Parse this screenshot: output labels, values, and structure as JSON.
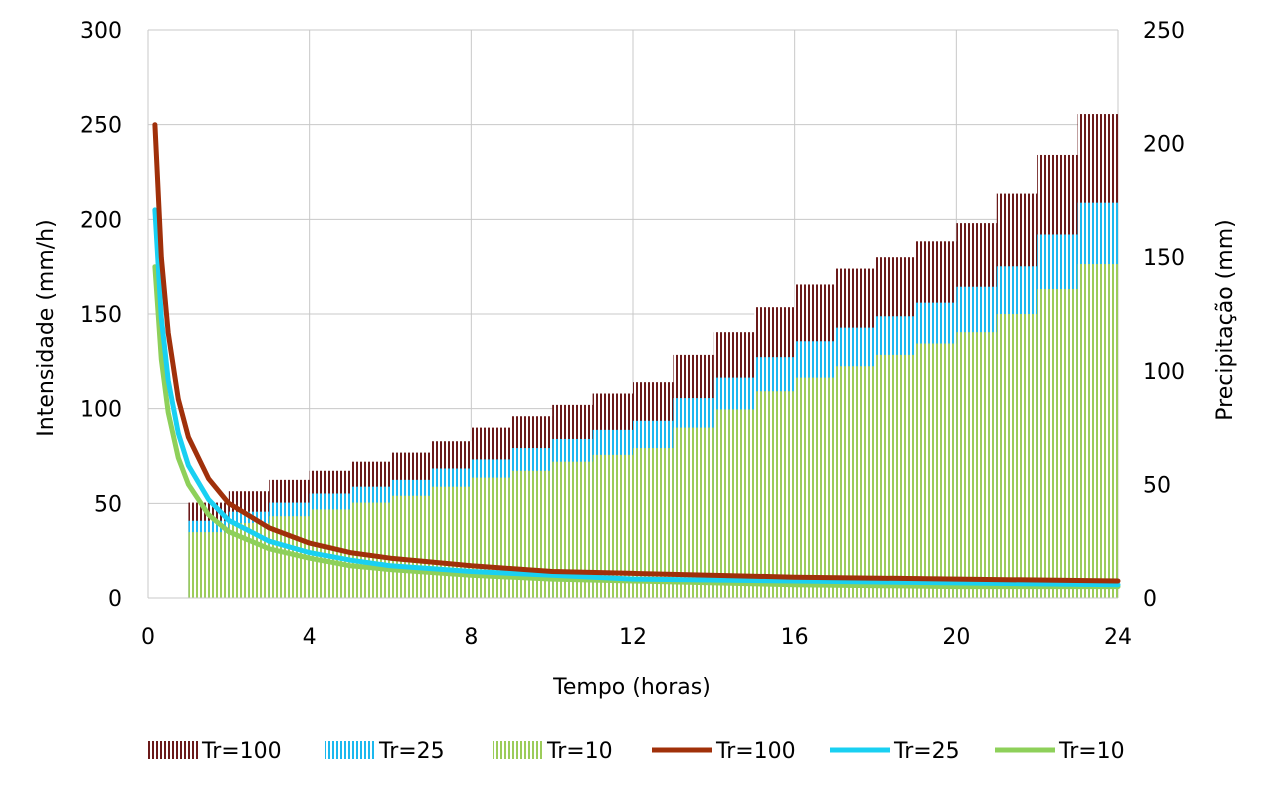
{
  "chart_data": {
    "type": "bar+line",
    "title": "",
    "xlabel": "Tempo (horas)",
    "ylabel_left": "Intensidade (mm/h)",
    "ylabel_right": "Precipitação (mm)",
    "xlim": [
      0,
      24
    ],
    "ylim_left": [
      0,
      300
    ],
    "ylim_right": [
      0,
      250
    ],
    "x_ticks": [
      "0",
      "4",
      "8",
      "12",
      "16",
      "20",
      "24"
    ],
    "y_left_ticks": [
      "0",
      "50",
      "100",
      "150",
      "200",
      "250",
      "300"
    ],
    "y_right_ticks": [
      "0",
      "50",
      "100",
      "150",
      "200",
      "250"
    ],
    "grid": true,
    "legend_position": "bottom",
    "colors": {
      "bar_tr100": "#6b1a1a",
      "bar_tr25": "#1cb8ee",
      "bar_tr10": "#9ccc5a",
      "line_tr100": "#a0300a",
      "line_tr25": "#19d0f2",
      "line_tr10": "#8ed05a",
      "grid": "#c8c8c8"
    },
    "bar_series": [
      {
        "name": "Tr=100",
        "axis": "right",
        "x": [
          1,
          2,
          3,
          4,
          5,
          6,
          7,
          8,
          9,
          10,
          11,
          12,
          13,
          14,
          15,
          16,
          17,
          18,
          19,
          20,
          21,
          22,
          23
        ],
        "values": [
          42,
          47,
          52,
          56,
          60,
          64,
          69,
          75,
          80,
          85,
          90,
          95,
          107,
          117,
          128,
          138,
          145,
          150,
          157,
          165,
          178,
          195,
          213
        ]
      },
      {
        "name": "Tr=25",
        "axis": "right",
        "x": [
          1,
          2,
          3,
          4,
          5,
          6,
          7,
          8,
          9,
          10,
          11,
          12,
          13,
          14,
          15,
          16,
          17,
          18,
          19,
          20,
          21,
          22,
          23
        ],
        "values": [
          34,
          38,
          42,
          46,
          49,
          52,
          57,
          61,
          66,
          70,
          74,
          78,
          88,
          97,
          106,
          113,
          119,
          124,
          130,
          137,
          146,
          160,
          174
        ]
      },
      {
        "name": "Tr=10",
        "axis": "right",
        "x": [
          1,
          2,
          3,
          4,
          5,
          6,
          7,
          8,
          9,
          10,
          11,
          12,
          13,
          14,
          15,
          16,
          17,
          18,
          19,
          20,
          21,
          22,
          23
        ],
        "values": [
          29,
          33,
          36,
          39,
          42,
          45,
          49,
          53,
          56,
          60,
          63,
          66,
          75,
          83,
          91,
          97,
          102,
          107,
          112,
          117,
          125,
          136,
          147
        ]
      }
    ],
    "line_series": [
      {
        "name": "Tr=100",
        "axis": "left",
        "x": [
          0.17,
          0.33,
          0.5,
          0.75,
          1,
          1.5,
          2,
          3,
          4,
          5,
          6,
          8,
          10,
          12,
          16,
          20,
          24
        ],
        "values": [
          250,
          180,
          140,
          105,
          85,
          63,
          50,
          37,
          29,
          24,
          21,
          17,
          14,
          13,
          11,
          10,
          9
        ]
      },
      {
        "name": "Tr=25",
        "axis": "left",
        "x": [
          0.17,
          0.33,
          0.5,
          0.75,
          1,
          1.5,
          2,
          3,
          4,
          5,
          6,
          8,
          10,
          12,
          16,
          20,
          24
        ],
        "values": [
          205,
          148,
          115,
          87,
          70,
          52,
          41,
          30,
          24,
          20,
          17,
          14,
          12,
          10,
          9,
          8,
          7
        ]
      },
      {
        "name": "Tr=10",
        "axis": "left",
        "x": [
          0.17,
          0.33,
          0.5,
          0.75,
          1,
          1.5,
          2,
          3,
          4,
          5,
          6,
          8,
          10,
          12,
          16,
          20,
          24
        ],
        "values": [
          175,
          126,
          98,
          74,
          60,
          44,
          35,
          26,
          21,
          17,
          15,
          12,
          10,
          9,
          7,
          6,
          6
        ]
      }
    ],
    "legend": [
      "Tr=100",
      "Tr=25",
      "Tr=10",
      "Tr=100",
      "Tr=25",
      "Tr=10"
    ]
  }
}
